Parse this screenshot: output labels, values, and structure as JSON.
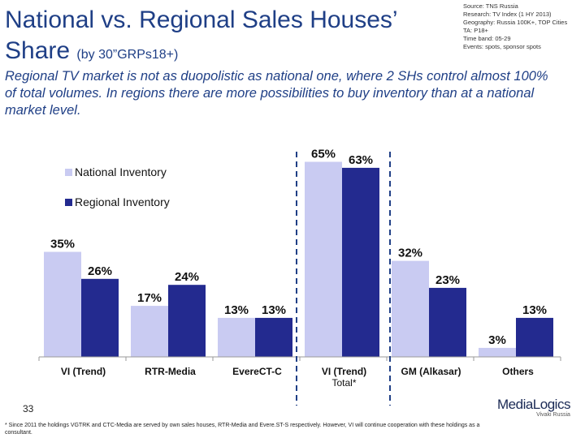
{
  "title": {
    "main": "National vs. Regional Sales Houses’ Share",
    "sub": "(by 30”GRPs18+)"
  },
  "source_lines": [
    "Source: TNS Russia",
    "Research: TV Index (1 HY 2013)",
    "Geography: Russia 100K+, TOP Cities",
    "TA: P18+",
    "Time band: 05-29",
    "Events: spots, sponsor spots"
  ],
  "subtitle": "Regional TV market is not as duopolistic as national one, where 2 SHs control almost 100% of total volumes. In regions there are more possibilities to buy inventory than at a national market level.",
  "page_number": "33",
  "logo": {
    "name": "MediaLogics",
    "tag": "Vivaki Russia"
  },
  "footnote": "* Since 2011 the holdings VGTRK and CTC-Media are served by own sales houses, RTR-Media and Evere.ST-S respectively. However, VI will continue cooperation with these holdings as a consultant.",
  "colors": {
    "title": "#1f3f86",
    "national": "#c9cbf2",
    "regional": "#232a8f",
    "axis": "#9a9a9a",
    "divider": "#1f3f86"
  },
  "chart_data": {
    "type": "bar",
    "categories": [
      "VI (Trend)",
      "RTR-Media",
      "EvereCT-C",
      "VI (Trend) Total*",
      "GM (Alkasar)",
      "Others"
    ],
    "series": [
      {
        "name": "National Inventory",
        "values": [
          35,
          17,
          13,
          65,
          32,
          3
        ]
      },
      {
        "name": "Regional Inventory",
        "values": [
          26,
          24,
          13,
          63,
          23,
          13
        ]
      }
    ],
    "data_labels": [
      [
        "35%",
        "17%",
        "13%",
        "65%",
        "32%",
        "3%"
      ],
      [
        "26%",
        "24%",
        "13%",
        "63%",
        "23%",
        "13%"
      ]
    ],
    "unit": "%",
    "legend_position": "top-left",
    "grid": false
  }
}
